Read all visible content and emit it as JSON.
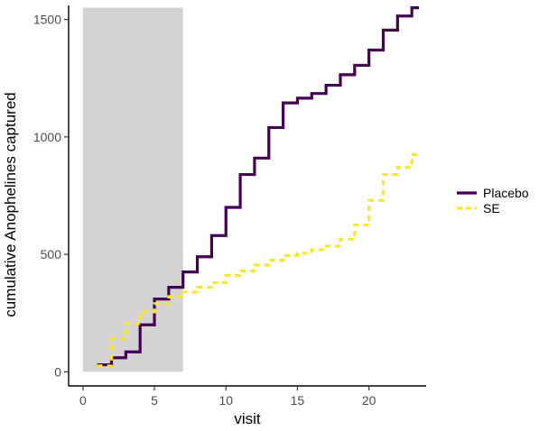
{
  "chart_data": {
    "type": "line",
    "line_style": "step",
    "xlabel": "visit",
    "ylabel": "cumulative Anophelines captured",
    "xlim": [
      -1,
      24
    ],
    "ylim": [
      -60,
      1560
    ],
    "xticks": [
      0,
      5,
      10,
      15,
      20
    ],
    "yticks": [
      0,
      500,
      1000,
      1500
    ],
    "grid": false,
    "legend_position": "right",
    "shaded_region": {
      "x": [
        0,
        7
      ],
      "y": [
        0,
        1550
      ],
      "color": "#d3d3d3"
    },
    "series": [
      {
        "name": "Placebo",
        "color": "#440154",
        "dash": "solid",
        "x": [
          1,
          2,
          3,
          4,
          5,
          6,
          7,
          8,
          9,
          10,
          11,
          12,
          13,
          14,
          15,
          16,
          17,
          18,
          19,
          20,
          21,
          22,
          23
        ],
        "y": [
          30,
          60,
          85,
          200,
          310,
          360,
          425,
          490,
          580,
          700,
          840,
          910,
          1040,
          1145,
          1165,
          1185,
          1220,
          1265,
          1305,
          1370,
          1455,
          1515,
          1550
        ]
      },
      {
        "name": "SE",
        "color": "#fde725",
        "dash": "dashed",
        "x": [
          1,
          2,
          3,
          4,
          5,
          6,
          7,
          8,
          9,
          10,
          11,
          12,
          13,
          14,
          15,
          16,
          17,
          18,
          19,
          20,
          21,
          22,
          23
        ],
        "y": [
          25,
          140,
          205,
          255,
          290,
          320,
          340,
          360,
          380,
          410,
          430,
          455,
          475,
          495,
          505,
          520,
          535,
          565,
          625,
          730,
          840,
          870,
          925
        ]
      }
    ]
  }
}
